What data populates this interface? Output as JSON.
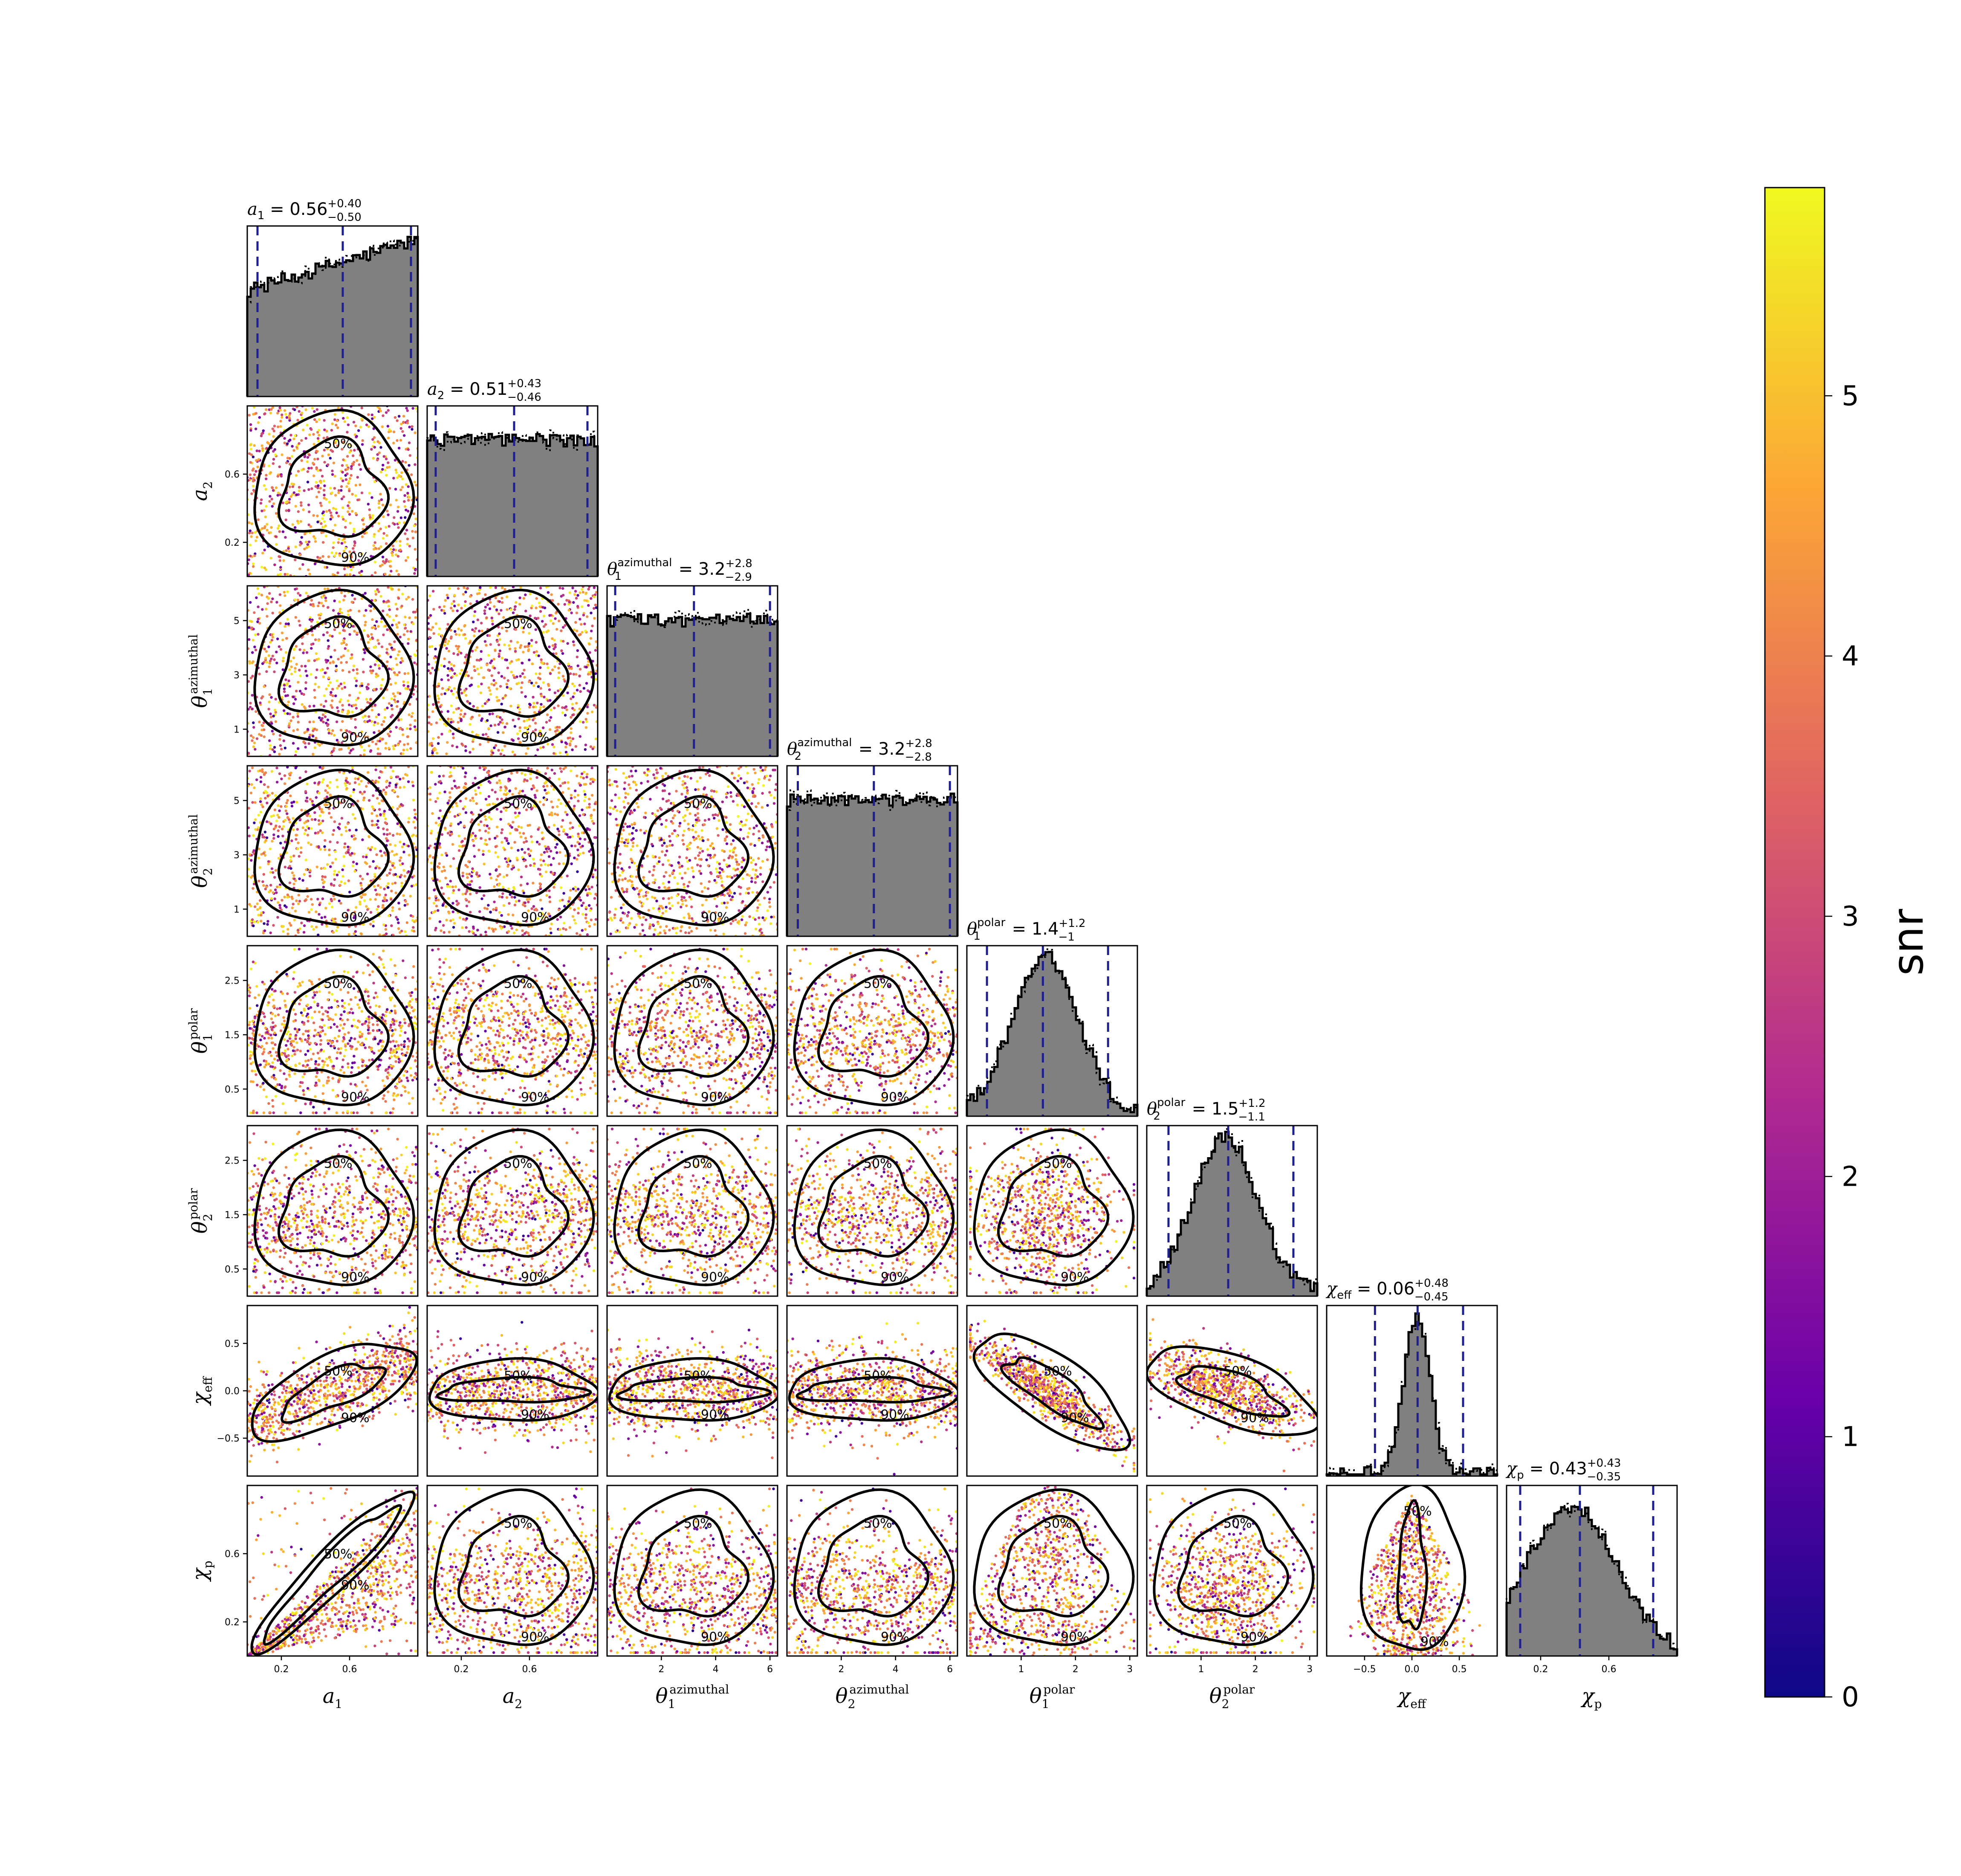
{
  "chart_data": {
    "type": "corner",
    "parameters": [
      {
        "key": "a1",
        "label": "a",
        "sub": "1",
        "sup": "",
        "range": [
          0,
          1
        ],
        "ticks": [
          0.2,
          0.6
        ],
        "tick_labels": [
          "0.2",
          "0.6"
        ],
        "title": {
          "value": "0.56",
          "plus": "+0.40",
          "minus": "−0.50"
        },
        "quantiles": [
          0.06,
          0.56,
          0.96
        ],
        "hist_shape": "rising"
      },
      {
        "key": "a2",
        "label": "a",
        "sub": "2",
        "sup": "",
        "range": [
          0,
          1
        ],
        "ticks": [
          0.2,
          0.6
        ],
        "tick_labels": [
          "0.2",
          "0.6"
        ],
        "title": {
          "value": "0.51",
          "plus": "+0.43",
          "minus": "−0.46"
        },
        "quantiles": [
          0.05,
          0.51,
          0.94
        ],
        "hist_shape": "flat"
      },
      {
        "key": "th1a",
        "label": "θ",
        "sub": "1",
        "sup": "azimuthal",
        "range": [
          0,
          6.28
        ],
        "ticks": [
          2,
          4,
          6
        ],
        "tick_labels": [
          "2",
          "4",
          "6"
        ],
        "y_ticks": [
          1,
          3,
          5
        ],
        "y_tick_labels": [
          "1",
          "3",
          "5"
        ],
        "title": {
          "value": "3.2",
          "plus": "+2.8",
          "minus": "−2.9"
        },
        "quantiles": [
          0.3,
          3.2,
          6.0
        ],
        "hist_shape": "flat"
      },
      {
        "key": "th2a",
        "label": "θ",
        "sub": "2",
        "sup": "azimuthal",
        "range": [
          0,
          6.28
        ],
        "ticks": [
          2,
          4,
          6
        ],
        "tick_labels": [
          "2",
          "4",
          "6"
        ],
        "y_ticks": [
          1,
          3,
          5
        ],
        "y_tick_labels": [
          "1",
          "3",
          "5"
        ],
        "title": {
          "value": "3.2",
          "plus": "+2.8",
          "minus": "−2.8"
        },
        "quantiles": [
          0.4,
          3.2,
          6.0
        ],
        "hist_shape": "flat"
      },
      {
        "key": "th1p",
        "label": "θ",
        "sub": "1",
        "sup": "polar",
        "range": [
          0,
          3.14
        ],
        "ticks": [
          1,
          2,
          3
        ],
        "tick_labels": [
          "1",
          "2",
          "3"
        ],
        "y_ticks": [
          0.5,
          1.5,
          2.5
        ],
        "y_tick_labels": [
          "0.5",
          "1.5",
          "2.5"
        ],
        "title": {
          "value": "1.4",
          "plus": "+1.2",
          "minus": "−1"
        },
        "quantiles": [
          0.37,
          1.4,
          2.6
        ],
        "hist_shape": "bell"
      },
      {
        "key": "th2p",
        "label": "θ",
        "sub": "2",
        "sup": "polar",
        "range": [
          0,
          3.14
        ],
        "ticks": [
          1,
          2,
          3
        ],
        "tick_labels": [
          "1",
          "2",
          "3"
        ],
        "y_ticks": [
          0.5,
          1.5,
          2.5
        ],
        "y_tick_labels": [
          "0.5",
          "1.5",
          "2.5"
        ],
        "title": {
          "value": "1.5",
          "plus": "+1.2",
          "minus": "−1.1"
        },
        "quantiles": [
          0.4,
          1.5,
          2.7
        ],
        "hist_shape": "bell"
      },
      {
        "key": "chieff",
        "label": "χ",
        "sub": "eff",
        "sup": "",
        "range": [
          -0.9,
          0.9
        ],
        "ticks": [
          -0.5,
          0.0,
          0.5
        ],
        "tick_labels": [
          "−0.5",
          "0.0",
          "0.5"
        ],
        "title": {
          "value": "0.06",
          "plus": "+0.48",
          "minus": "−0.45"
        },
        "quantiles": [
          -0.39,
          0.06,
          0.54
        ],
        "hist_shape": "peaked"
      },
      {
        "key": "chip",
        "label": "χ",
        "sub": "p",
        "sup": "",
        "range": [
          0,
          1
        ],
        "ticks": [
          0.2,
          0.6
        ],
        "tick_labels": [
          "0.2",
          "0.6"
        ],
        "title": {
          "value": "0.43",
          "plus": "+0.43",
          "minus": "−0.35"
        },
        "quantiles": [
          0.08,
          0.43,
          0.86
        ],
        "hist_shape": "skewed"
      }
    ],
    "contour_levels": [
      "50%",
      "90%"
    ],
    "colorbar": {
      "label": "snr",
      "range": [
        0,
        5.8
      ],
      "ticks": [
        0,
        1,
        2,
        3,
        4,
        5
      ],
      "tick_labels": [
        "0",
        "1",
        "2",
        "3",
        "4",
        "5"
      ],
      "colormap": "plasma",
      "stops": [
        "#0d0887",
        "#6a00a8",
        "#b12a90",
        "#e16462",
        "#fca636",
        "#f0f921"
      ]
    },
    "histogram_fill_color": "#808080",
    "quantile_line_color": "#1f1f8f"
  }
}
